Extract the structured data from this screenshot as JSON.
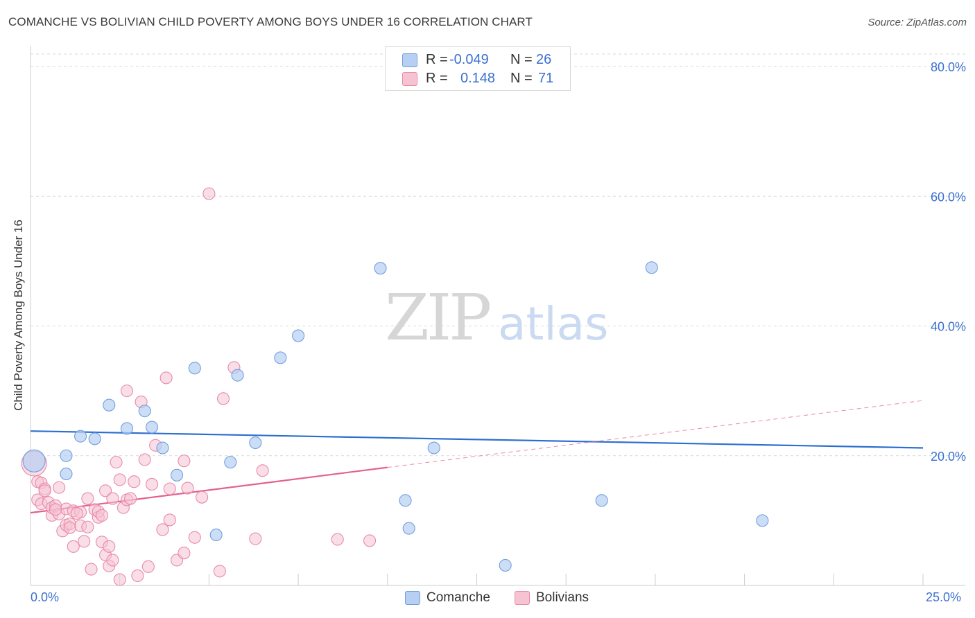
{
  "title": "COMANCHE VS BOLIVIAN CHILD POVERTY AMONG BOYS UNDER 16 CORRELATION CHART",
  "source": "Source: ZipAtlas.com",
  "watermark": {
    "zip": "ZIP",
    "atlas": "atlas"
  },
  "legend": {
    "rows": [
      {
        "r_label": "R =",
        "r_value": "-0.049",
        "n_label": "N =",
        "n_value": "26"
      },
      {
        "r_label": "R =",
        "r_value": "0.148",
        "n_label": "N =",
        "n_value": "71"
      }
    ]
  },
  "bottom_legend": [
    "Comanche",
    "Bolivians"
  ],
  "colors": {
    "comanche_fill": "#b7cff2",
    "comanche_stroke": "#6f9ee0",
    "comanche_line": "#2d6fd0",
    "bolivians_fill": "#f6c3d3",
    "bolivians_stroke": "#e88aa8",
    "bolivians_line": "#e5608c",
    "tick_label": "#3a6fd0",
    "grid": "#d9d9d9"
  },
  "chart_data": {
    "type": "scatter",
    "title": "COMANCHE VS BOLIVIAN CHILD POVERTY AMONG BOYS UNDER 16 CORRELATION CHART",
    "xlabel": "",
    "ylabel": "Child Poverty Among Boys Under 16",
    "xlim": [
      0,
      25
    ],
    "ylim": [
      0,
      80
    ],
    "x_tick_labels": [
      "0.0%",
      "25.0%"
    ],
    "y_ticks": [
      20,
      40,
      60,
      80
    ],
    "y_tick_labels": [
      "20.0%",
      "40.0%",
      "60.0%",
      "80.0%"
    ],
    "series": [
      {
        "name": "Comanche",
        "r": -0.049,
        "n": 26,
        "trend": {
          "x0": 0,
          "y0": 23.8,
          "x1": 25,
          "y1": 21.2,
          "dashed_to": null
        },
        "points": [
          {
            "x": 0.1,
            "y": 19.2,
            "big": true
          },
          {
            "x": 1.0,
            "y": 20.0
          },
          {
            "x": 1.0,
            "y": 17.2
          },
          {
            "x": 1.4,
            "y": 23.0
          },
          {
            "x": 1.8,
            "y": 22.6
          },
          {
            "x": 2.2,
            "y": 27.8
          },
          {
            "x": 2.7,
            "y": 24.2
          },
          {
            "x": 3.2,
            "y": 26.9
          },
          {
            "x": 3.4,
            "y": 24.4
          },
          {
            "x": 3.7,
            "y": 21.2
          },
          {
            "x": 4.1,
            "y": 17.0
          },
          {
            "x": 4.6,
            "y": 33.5
          },
          {
            "x": 5.2,
            "y": 7.8
          },
          {
            "x": 5.6,
            "y": 19.0
          },
          {
            "x": 5.8,
            "y": 32.4
          },
          {
            "x": 6.3,
            "y": 22.0
          },
          {
            "x": 7.0,
            "y": 35.1
          },
          {
            "x": 7.5,
            "y": 38.5
          },
          {
            "x": 9.8,
            "y": 48.9
          },
          {
            "x": 10.5,
            "y": 13.1
          },
          {
            "x": 10.6,
            "y": 8.8
          },
          {
            "x": 11.3,
            "y": 21.2
          },
          {
            "x": 13.3,
            "y": 3.1
          },
          {
            "x": 16.0,
            "y": 13.1
          },
          {
            "x": 17.4,
            "y": 49.0
          },
          {
            "x": 20.5,
            "y": 10.0
          }
        ]
      },
      {
        "name": "Bolivians",
        "r": 0.148,
        "n": 71,
        "trend": {
          "x0": 0,
          "y0": 11.2,
          "x1": 10.0,
          "y1": 18.2,
          "dashed_to": {
            "x": 25,
            "y": 28.5
          }
        },
        "points": [
          {
            "x": 0.1,
            "y": 18.8,
            "big": true
          },
          {
            "x": 0.2,
            "y": 16.0
          },
          {
            "x": 0.2,
            "y": 13.2
          },
          {
            "x": 0.3,
            "y": 12.6
          },
          {
            "x": 0.3,
            "y": 15.8
          },
          {
            "x": 0.4,
            "y": 14.9
          },
          {
            "x": 0.5,
            "y": 12.8
          },
          {
            "x": 0.6,
            "y": 10.8
          },
          {
            "x": 0.6,
            "y": 12.0
          },
          {
            "x": 0.7,
            "y": 12.3
          },
          {
            "x": 0.8,
            "y": 15.1
          },
          {
            "x": 0.8,
            "y": 11.0
          },
          {
            "x": 0.9,
            "y": 8.4
          },
          {
            "x": 1.0,
            "y": 11.8
          },
          {
            "x": 1.0,
            "y": 9.3
          },
          {
            "x": 1.1,
            "y": 9.5
          },
          {
            "x": 1.2,
            "y": 6.0
          },
          {
            "x": 1.2,
            "y": 11.5
          },
          {
            "x": 1.4,
            "y": 11.3
          },
          {
            "x": 1.4,
            "y": 9.2
          },
          {
            "x": 1.5,
            "y": 6.8
          },
          {
            "x": 1.6,
            "y": 13.4
          },
          {
            "x": 1.6,
            "y": 9.0
          },
          {
            "x": 1.7,
            "y": 2.5
          },
          {
            "x": 1.8,
            "y": 11.7
          },
          {
            "x": 1.9,
            "y": 10.5
          },
          {
            "x": 1.9,
            "y": 11.4
          },
          {
            "x": 2.0,
            "y": 6.7
          },
          {
            "x": 2.0,
            "y": 10.8
          },
          {
            "x": 2.1,
            "y": 4.7
          },
          {
            "x": 2.1,
            "y": 14.6
          },
          {
            "x": 2.2,
            "y": 3.0
          },
          {
            "x": 2.2,
            "y": 6.0
          },
          {
            "x": 2.3,
            "y": 13.4
          },
          {
            "x": 2.3,
            "y": 3.9
          },
          {
            "x": 2.4,
            "y": 19.0
          },
          {
            "x": 2.5,
            "y": 0.9
          },
          {
            "x": 2.5,
            "y": 16.3
          },
          {
            "x": 2.6,
            "y": 12.0
          },
          {
            "x": 2.7,
            "y": 13.2
          },
          {
            "x": 2.7,
            "y": 30.0
          },
          {
            "x": 2.8,
            "y": 13.4
          },
          {
            "x": 2.9,
            "y": 16.0
          },
          {
            "x": 3.0,
            "y": 1.5
          },
          {
            "x": 3.1,
            "y": 28.3
          },
          {
            "x": 3.2,
            "y": 19.4
          },
          {
            "x": 3.3,
            "y": 2.9
          },
          {
            "x": 3.4,
            "y": 15.6
          },
          {
            "x": 3.5,
            "y": 21.6
          },
          {
            "x": 3.7,
            "y": 8.6
          },
          {
            "x": 3.8,
            "y": 32.0
          },
          {
            "x": 3.9,
            "y": 14.9
          },
          {
            "x": 3.9,
            "y": 10.1
          },
          {
            "x": 4.1,
            "y": 3.9
          },
          {
            "x": 4.3,
            "y": 5.0
          },
          {
            "x": 4.3,
            "y": 19.2
          },
          {
            "x": 4.4,
            "y": 15.0
          },
          {
            "x": 4.6,
            "y": 7.4
          },
          {
            "x": 4.8,
            "y": 13.6
          },
          {
            "x": 5.0,
            "y": 60.4
          },
          {
            "x": 5.3,
            "y": 2.2
          },
          {
            "x": 5.4,
            "y": 28.8
          },
          {
            "x": 5.7,
            "y": 33.6
          },
          {
            "x": 6.3,
            "y": 7.2
          },
          {
            "x": 6.5,
            "y": 17.7
          },
          {
            "x": 8.6,
            "y": 7.1
          },
          {
            "x": 9.5,
            "y": 6.9
          },
          {
            "x": 0.4,
            "y": 14.6
          },
          {
            "x": 1.3,
            "y": 11.1
          },
          {
            "x": 0.7,
            "y": 11.7
          },
          {
            "x": 1.1,
            "y": 8.9
          }
        ]
      }
    ]
  }
}
